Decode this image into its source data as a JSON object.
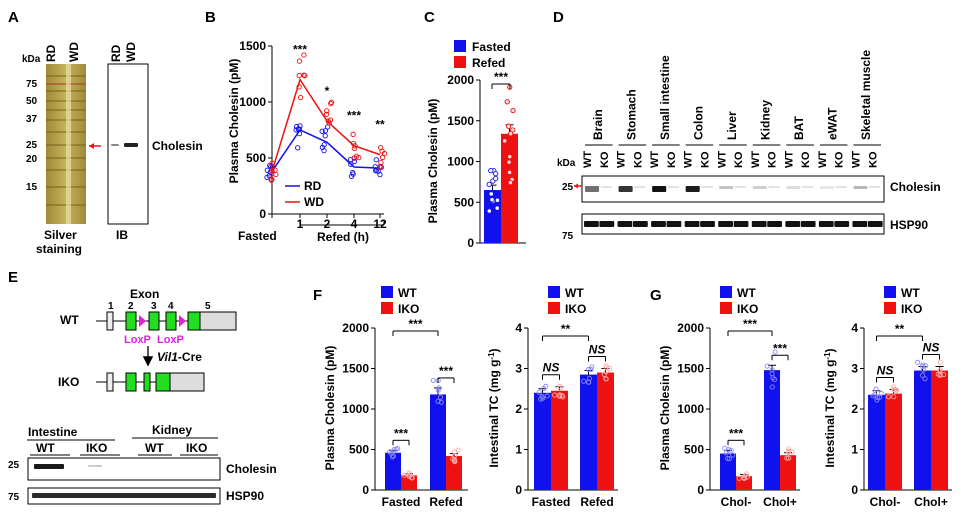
{
  "colors": {
    "fasted": "#1111ee",
    "refed": "#ee1111",
    "wt": "#1111ee",
    "iko": "#ee1111",
    "rd": "#1111ee",
    "wd": "#ee1111",
    "exon": "#22dd22",
    "loxp": "#dd22dd"
  },
  "panelA": {
    "letter": "A",
    "kda": "kDa",
    "col_rd": "RD",
    "col_wd": "WD",
    "markers": [
      "75",
      "50",
      "37",
      "25",
      "20",
      "15"
    ],
    "cholesin": "Cholesin",
    "silver1": "Silver",
    "silver2": "staining",
    "ib": "IB"
  },
  "panelB": {
    "letter": "B",
    "ylabel": "Plasma Cholesin (pM)",
    "fasted": "Fasted",
    "refed": "Refed (h)",
    "legend_rd": "RD",
    "legend_wd": "WD",
    "chart_data": {
      "type": "line",
      "title": "",
      "xlabel": "Refed (h)",
      "ylabel": "Plasma Cholesin (pM)",
      "x": [
        "Fasted",
        "1",
        "2",
        "4",
        "12"
      ],
      "ylim": [
        0,
        1500
      ],
      "yticks": [
        0,
        500,
        1000,
        1500
      ],
      "series": [
        {
          "name": "RD",
          "values": [
            380,
            750,
            640,
            420,
            410
          ]
        },
        {
          "name": "WD",
          "values": [
            380,
            1200,
            830,
            610,
            530
          ]
        }
      ],
      "significance": [
        "***",
        "*",
        "***",
        "**"
      ]
    }
  },
  "panelC": {
    "letter": "C",
    "ylabel": "Plasma Cholesin (pM)",
    "legend_fasted": "Fasted",
    "legend_refed": "Refed",
    "sig": "***",
    "chart_data": {
      "type": "bar",
      "categories": [
        "Fasted",
        "Refed"
      ],
      "values": [
        650,
        1340
      ],
      "errors": [
        60,
        110
      ],
      "ylim": [
        0,
        2000
      ],
      "yticks": [
        0,
        500,
        1000,
        1500,
        2000
      ],
      "ylabel": "Plasma Cholesin (pM)"
    }
  },
  "panelD": {
    "letter": "D",
    "kda": "kDa",
    "tissues": [
      "Brain",
      "Stomach",
      "Small intestine",
      "Colon",
      "Liver",
      "Kidney",
      "BAT",
      "eWAT",
      "Skeletal muscle"
    ],
    "wt": "WT",
    "ko": "KO",
    "m25": "25",
    "m75": "75",
    "cholesin": "Cholesin",
    "hsp90": "HSP90"
  },
  "panelE": {
    "letter": "E",
    "exon": "Exon",
    "wt": "WT",
    "iko": "IKO",
    "exons": [
      "1",
      "2",
      "3",
      "4",
      "5"
    ],
    "loxp1": "LoxP",
    "loxp2": "LoxP",
    "cre_gene": "Vil1",
    "cre_suffix": "-Cre",
    "intestine": "Intestine",
    "kidney": "Kidney",
    "lane_wt": "WT",
    "lane_iko": "IKO",
    "m25": "25",
    "m75": "75",
    "cholesin": "Cholesin",
    "hsp90": "HSP90"
  },
  "panelF": {
    "letter": "F",
    "legend_wt": "WT",
    "legend_iko": "IKO",
    "chart_data": [
      {
        "type": "bar",
        "ylabel": "Plasma Cholesin (pM)",
        "categories": [
          "Fasted",
          "Refed"
        ],
        "ylim": [
          0,
          2000
        ],
        "yticks": [
          0,
          500,
          1000,
          1500,
          2000
        ],
        "series": [
          {
            "name": "WT",
            "values": [
              460,
              1180
            ],
            "errors": [
              30,
              80
            ]
          },
          {
            "name": "IKO",
            "values": [
              180,
              420
            ],
            "errors": [
              20,
              30
            ]
          }
        ],
        "significance": {
          "within_left": "***",
          "between": "***",
          "within_right": "***"
        }
      },
      {
        "type": "bar",
        "ylabel": "Intestinal TC (mg g",
        "ylabel_sup": "-1",
        "ylabel_end": ")",
        "categories": [
          "Fasted",
          "Refed"
        ],
        "ylim": [
          0,
          4
        ],
        "yticks": [
          0,
          1,
          2,
          3,
          4
        ],
        "series": [
          {
            "name": "WT",
            "values": [
              2.4,
              2.85
            ],
            "errors": [
              0.1,
              0.1
            ]
          },
          {
            "name": "IKO",
            "values": [
              2.45,
              2.9
            ],
            "errors": [
              0.1,
              0.1
            ]
          }
        ],
        "significance": {
          "within_left": "NS",
          "between": "**",
          "within_right": "NS"
        }
      }
    ]
  },
  "panelG": {
    "letter": "G",
    "legend_wt": "WT",
    "legend_iko": "IKO",
    "chart_data": [
      {
        "type": "bar",
        "ylabel": "Plasma Cholesin (pM)",
        "categories": [
          "Chol-",
          "Chol+"
        ],
        "ylim": [
          0,
          2000
        ],
        "yticks": [
          0,
          500,
          1000,
          1500,
          2000
        ],
        "series": [
          {
            "name": "WT",
            "values": [
              450,
              1480
            ],
            "errors": [
              40,
              60
            ]
          },
          {
            "name": "IKO",
            "values": [
              170,
              430
            ],
            "errors": [
              20,
              30
            ]
          }
        ],
        "significance": {
          "within_left": "***",
          "between": "***",
          "within_right": "***"
        }
      },
      {
        "type": "bar",
        "ylabel": "Intestinal TC (mg g",
        "ylabel_sup": "-1",
        "ylabel_end": ")",
        "categories": [
          "Chol-",
          "Chol+"
        ],
        "ylim": [
          0,
          4
        ],
        "yticks": [
          0,
          1,
          2,
          3,
          4
        ],
        "series": [
          {
            "name": "WT",
            "values": [
              2.35,
              2.95
            ],
            "errors": [
              0.1,
              0.1
            ]
          },
          {
            "name": "IKO",
            "values": [
              2.38,
              2.95
            ],
            "errors": [
              0.1,
              0.1
            ]
          }
        ],
        "significance": {
          "within_left": "NS",
          "between": "**",
          "within_right": "NS"
        }
      }
    ]
  }
}
